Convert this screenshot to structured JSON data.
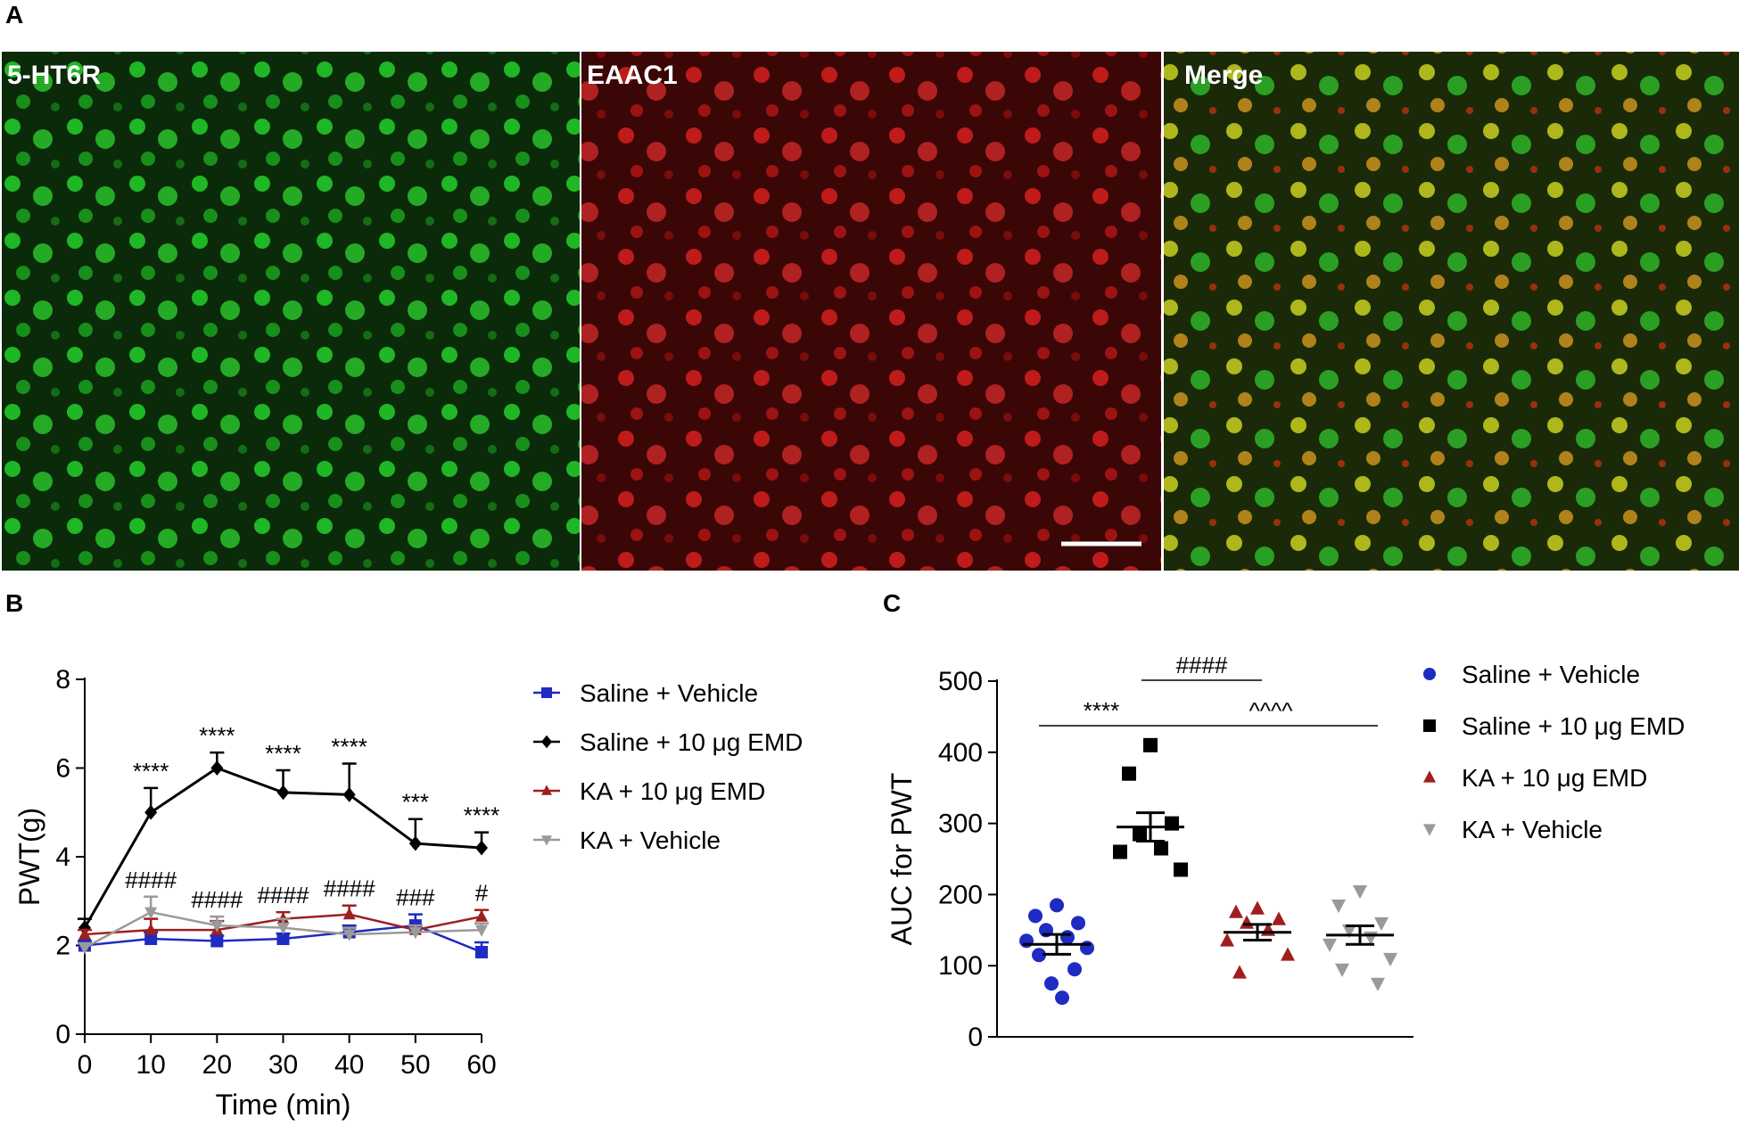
{
  "panels": {
    "a": {
      "letter": "A",
      "images": [
        {
          "label": "5-HT6R",
          "color": "#22d02a"
        },
        {
          "label": "EAAC1",
          "color": "#e01818"
        },
        {
          "label": "Merge",
          "color": "#c8d020"
        }
      ]
    },
    "b": {
      "letter": "B"
    },
    "c": {
      "letter": "C"
    }
  },
  "chart_data": [
    {
      "type": "line",
      "xlabel": "Time (min)",
      "ylabel": "PWT(g)",
      "x": [
        0,
        10,
        20,
        30,
        40,
        50,
        60
      ],
      "xlim": [
        0,
        60
      ],
      "ylim": [
        0,
        8
      ],
      "xticks": [
        "0",
        "10",
        "20",
        "30",
        "40",
        "50",
        "60"
      ],
      "yticks": [
        "0",
        "2",
        "4",
        "6",
        "8"
      ],
      "legend_position": "right",
      "series": [
        {
          "name": "Saline + Vehicle",
          "marker": "square",
          "color": "#1f2bc2",
          "values": [
            2.0,
            2.15,
            2.1,
            2.15,
            2.3,
            2.45,
            1.85
          ],
          "errors": [
            0.1,
            0.15,
            0.12,
            0.12,
            0.15,
            0.25,
            0.22
          ]
        },
        {
          "name": "Saline + 10 μg EMD",
          "marker": "diamond",
          "color": "#000000",
          "values": [
            2.4,
            5.0,
            6.0,
            5.45,
            5.4,
            4.3,
            4.2
          ],
          "errors": [
            0.2,
            0.55,
            0.35,
            0.5,
            0.7,
            0.55,
            0.35
          ]
        },
        {
          "name": "KA + 10 μg EMD",
          "marker": "triangle-up",
          "color": "#a01e1e",
          "values": [
            2.25,
            2.35,
            2.35,
            2.6,
            2.7,
            2.35,
            2.65
          ],
          "errors": [
            0.1,
            0.25,
            0.2,
            0.15,
            0.2,
            0.1,
            0.15
          ]
        },
        {
          "name": "KA + Vehicle",
          "marker": "triangle-down",
          "color": "#9a9a9a",
          "values": [
            1.95,
            2.75,
            2.45,
            2.4,
            2.25,
            2.3,
            2.35
          ],
          "errors": [
            0.1,
            0.35,
            0.2,
            0.2,
            0.15,
            0.15,
            0.15
          ]
        }
      ],
      "annotations": {
        "upper": [
          "",
          "****",
          "****",
          "****",
          "****",
          "***",
          "****"
        ],
        "lower": [
          "",
          "####",
          "####",
          "####",
          "####",
          "###",
          "#"
        ]
      }
    },
    {
      "type": "scatter",
      "ylabel": "AUC for PWT",
      "ylim": [
        0,
        500
      ],
      "yticks": [
        "0",
        "100",
        "200",
        "300",
        "400",
        "500"
      ],
      "legend_position": "right",
      "groups": [
        {
          "name": "Saline + Vehicle",
          "marker": "circle",
          "color": "#1f2bc2",
          "mean": 130,
          "sem": 14,
          "values": [
            185,
            170,
            160,
            150,
            140,
            135,
            125,
            115,
            95,
            75,
            55
          ]
        },
        {
          "name": "Saline + 10 μg EMD",
          "marker": "square",
          "color": "#000000",
          "mean": 295,
          "sem": 20,
          "values": [
            410,
            370,
            300,
            285,
            265,
            260,
            235
          ]
        },
        {
          "name": "KA + 10 μg EMD",
          "marker": "triangle-up",
          "color": "#a01e1e",
          "mean": 147,
          "sem": 11,
          "values": [
            180,
            175,
            165,
            160,
            150,
            135,
            115,
            90
          ]
        },
        {
          "name": "KA + Vehicle",
          "marker": "triangle-down",
          "color": "#9a9a9a",
          "mean": 143,
          "sem": 13,
          "values": [
            205,
            185,
            160,
            150,
            140,
            130,
            110,
            95,
            75
          ]
        }
      ],
      "comparisons": [
        {
          "from": 1,
          "to": 2,
          "label": "####"
        },
        {
          "from": 0,
          "to": 1,
          "label": "****"
        },
        {
          "from": 1,
          "to": 3,
          "label": "^^^^"
        }
      ]
    }
  ]
}
